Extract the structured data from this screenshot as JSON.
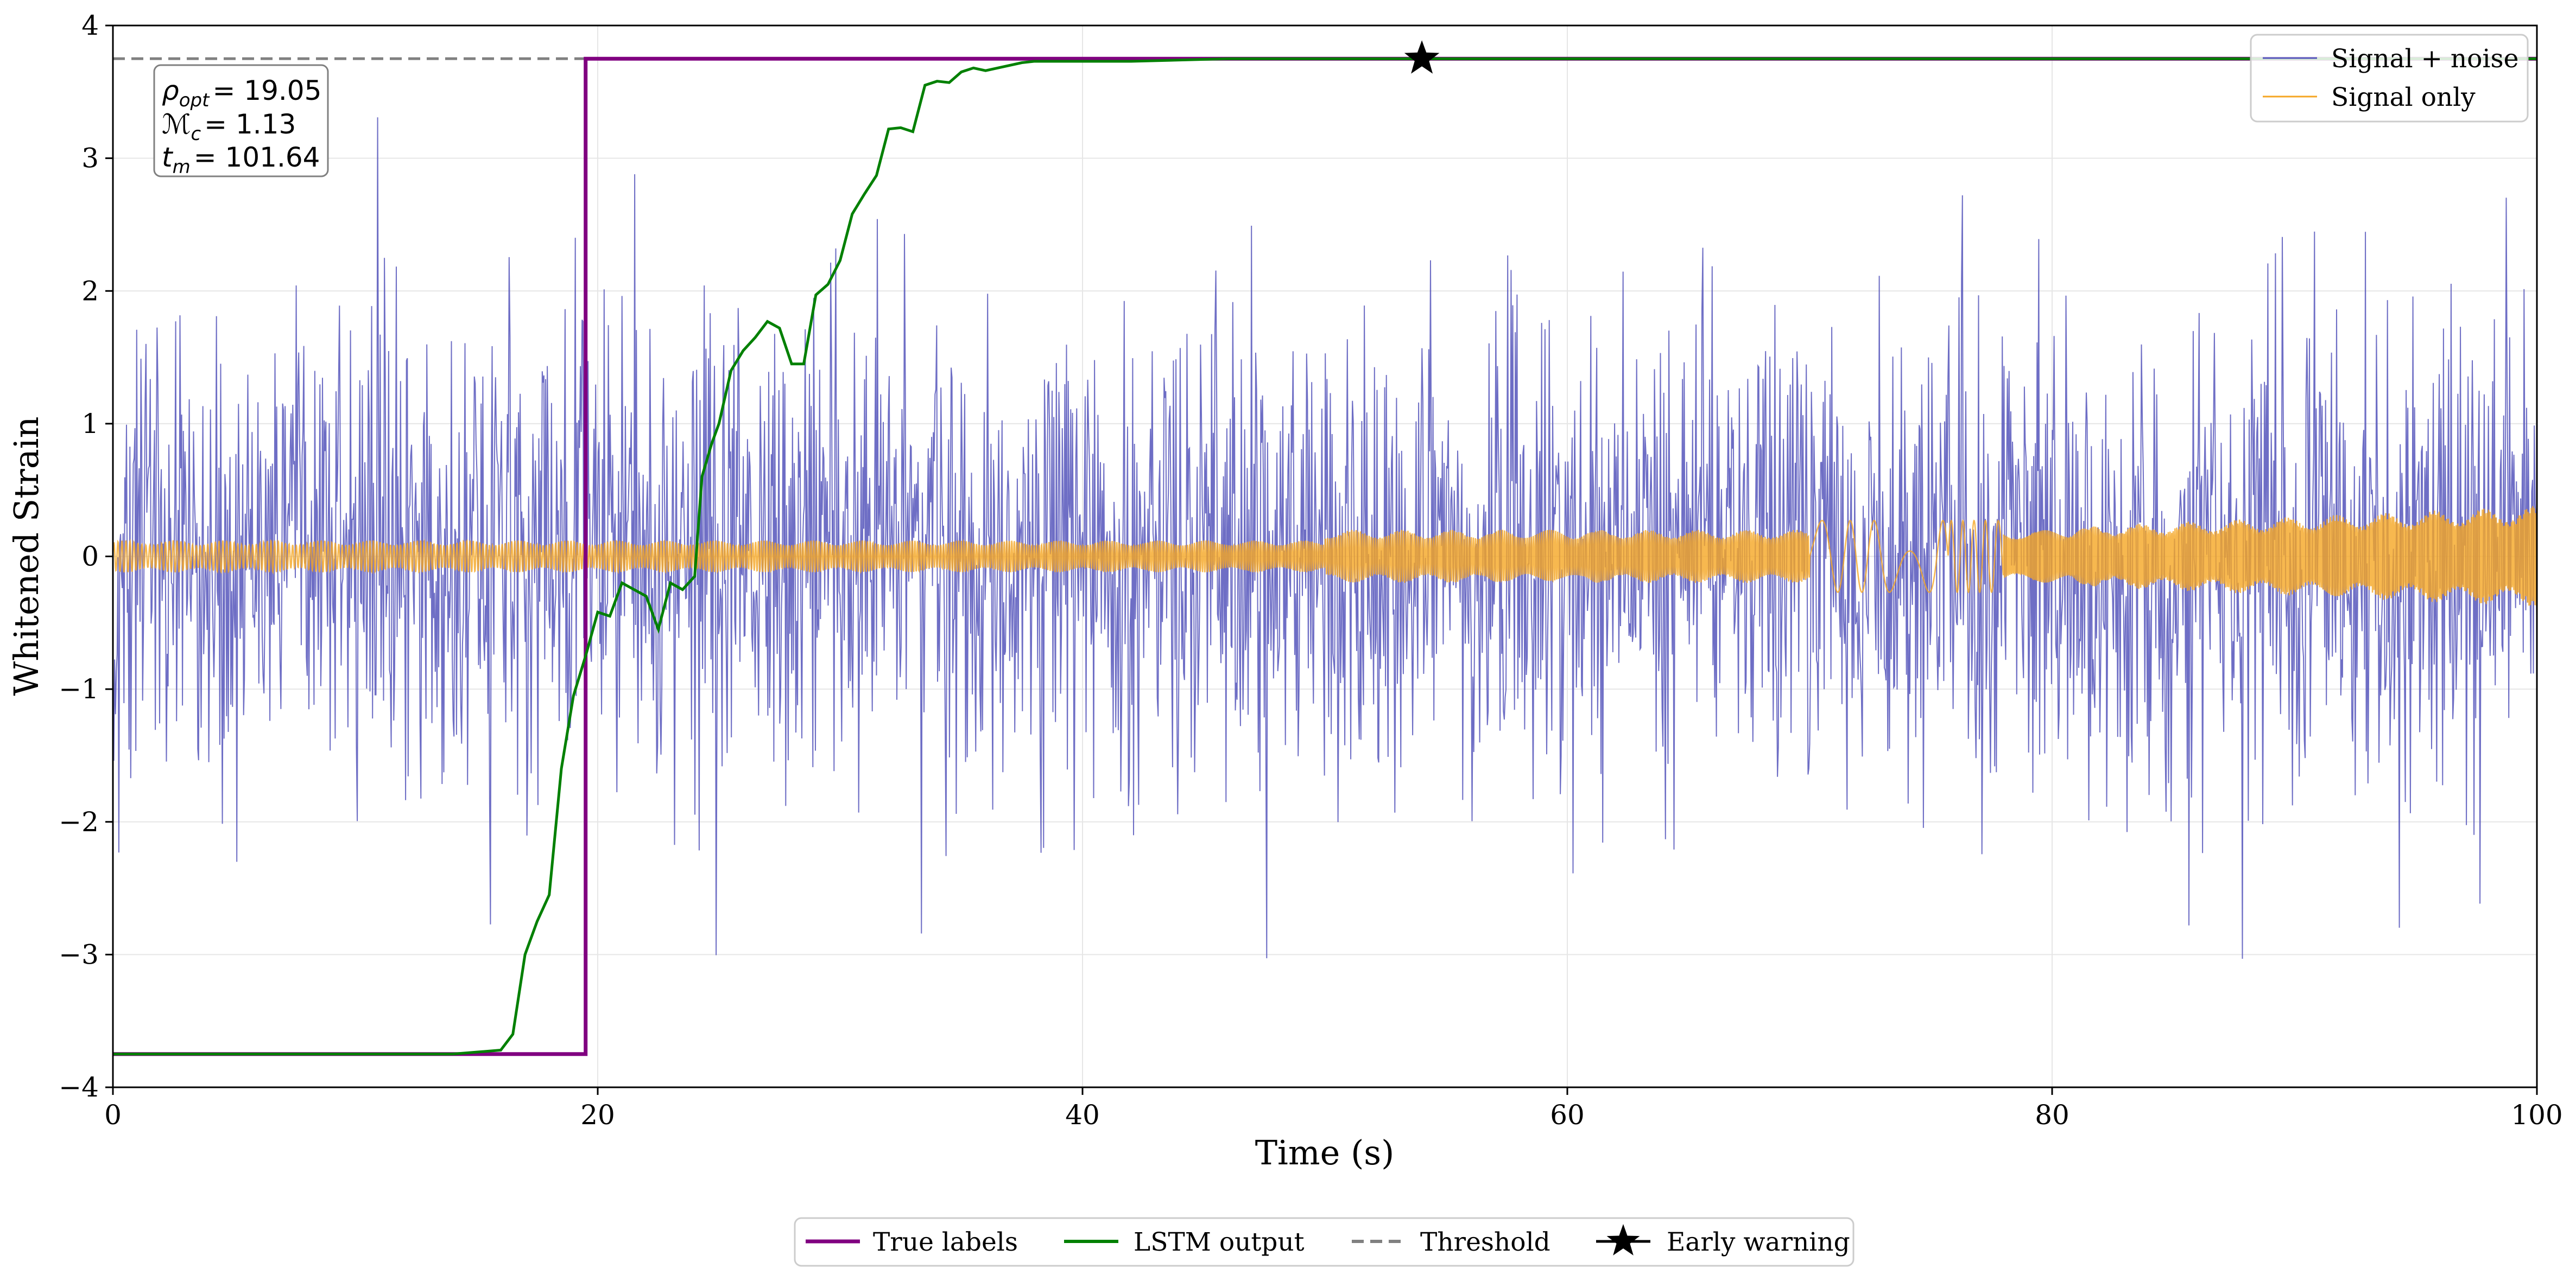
{
  "chart_data": {
    "type": "line",
    "xlabel": "Time (s)",
    "ylabel": "Whitened Strain",
    "xlim": [
      0,
      100
    ],
    "ylim": [
      -4,
      4
    ],
    "xticks": [
      0,
      20,
      40,
      60,
      80,
      100
    ],
    "yticks": [
      -4,
      -3,
      -2,
      -1,
      0,
      1,
      2,
      3,
      4
    ],
    "xtick_labels": [
      "0",
      "20",
      "40",
      "60",
      "80",
      "100"
    ],
    "ytick_labels": [
      "−4",
      "−3",
      "−2",
      "−1",
      "0",
      "1",
      "2",
      "3",
      "4"
    ],
    "grid": true,
    "colors": {
      "signal_noise": "#5555bb",
      "signal_only": "#f5a623",
      "true_labels": "#800080",
      "lstm": "#008000",
      "threshold": "#808080",
      "early_warning": "#000000"
    },
    "annotation": {
      "rho_symbol": "ρ",
      "rho_sub": "opt",
      "rho_value": "= 19.05",
      "mc_symbol": "ℳ",
      "mc_sub": "c",
      "mc_value": "= 1.13",
      "tm_symbol": "t",
      "tm_sub": "m",
      "tm_value": "= 101.64"
    },
    "series": [
      {
        "name": "Signal + noise",
        "legend": "Signal + noise",
        "description": "white noise, amplitude std ~0.9, spikes to ~±3.3, spanning 0–100 s",
        "noise_std": 0.9,
        "sample_step": 0.035
      },
      {
        "name": "Signal only",
        "legend": "Signal only",
        "description": "chirp-like oscillation with amplitude ~0.1 growing to ~0.4, slow glitch near 70–77 s",
        "segments": [
          {
            "t0": 0,
            "t1": 50,
            "amp": 0.12
          },
          {
            "t0": 50,
            "t1": 70,
            "amp": 0.2
          },
          {
            "t0": 70,
            "t1": 78,
            "amp": 0.27,
            "slow": true
          },
          {
            "t0": 78,
            "t1": 100,
            "amp_start": 0.2,
            "amp_end": 0.38
          }
        ]
      },
      {
        "name": "True labels",
        "legend": "True labels",
        "x": [
          0,
          19.5,
          19.5,
          100
        ],
        "y": [
          -3.75,
          -3.75,
          3.75,
          3.75
        ]
      },
      {
        "name": "LSTM output",
        "legend": "LSTM output",
        "x": [
          0,
          14,
          16,
          16.5,
          17,
          17.5,
          18,
          18.5,
          19,
          19.5,
          20,
          20.5,
          21,
          21.5,
          22,
          22.5,
          23,
          23.5,
          24,
          24.3,
          24.7,
          25,
          25.5,
          26,
          26.5,
          27,
          27.5,
          28,
          28.5,
          29,
          29.5,
          30,
          30.5,
          31,
          31.5,
          32,
          32.5,
          33,
          33.5,
          34,
          34.5,
          35,
          35.5,
          36,
          36.5,
          37,
          37.5,
          38,
          39,
          40,
          42,
          44,
          46,
          48,
          50,
          60,
          80,
          100
        ],
        "y": [
          -3.75,
          -3.75,
          -3.72,
          -3.6,
          -3.0,
          -2.75,
          -2.55,
          -1.6,
          -1.05,
          -0.75,
          -0.42,
          -0.45,
          -0.2,
          -0.25,
          -0.3,
          -0.55,
          -0.2,
          -0.25,
          -0.15,
          0.6,
          0.85,
          1.0,
          1.4,
          1.55,
          1.65,
          1.77,
          1.72,
          1.45,
          1.45,
          1.97,
          2.05,
          2.23,
          2.58,
          2.73,
          2.87,
          3.22,
          3.23,
          3.2,
          3.55,
          3.58,
          3.57,
          3.65,
          3.68,
          3.66,
          3.68,
          3.7,
          3.72,
          3.73,
          3.73,
          3.73,
          3.73,
          3.74,
          3.75,
          3.75,
          3.75,
          3.75,
          3.75,
          3.75
        ]
      },
      {
        "name": "Threshold",
        "legend": "Threshold",
        "y_value": 3.75
      },
      {
        "name": "Early warning",
        "legend": "Early warning",
        "x": [
          54
        ],
        "y": [
          3.75
        ]
      }
    ],
    "legend_upper": [
      "Signal + noise",
      "Signal only"
    ],
    "legend_bottom": [
      "True labels",
      "LSTM output",
      "Threshold",
      "Early warning"
    ],
    "legend_upper_placement": "top-right",
    "legend_bottom_placement": "below-axes"
  }
}
